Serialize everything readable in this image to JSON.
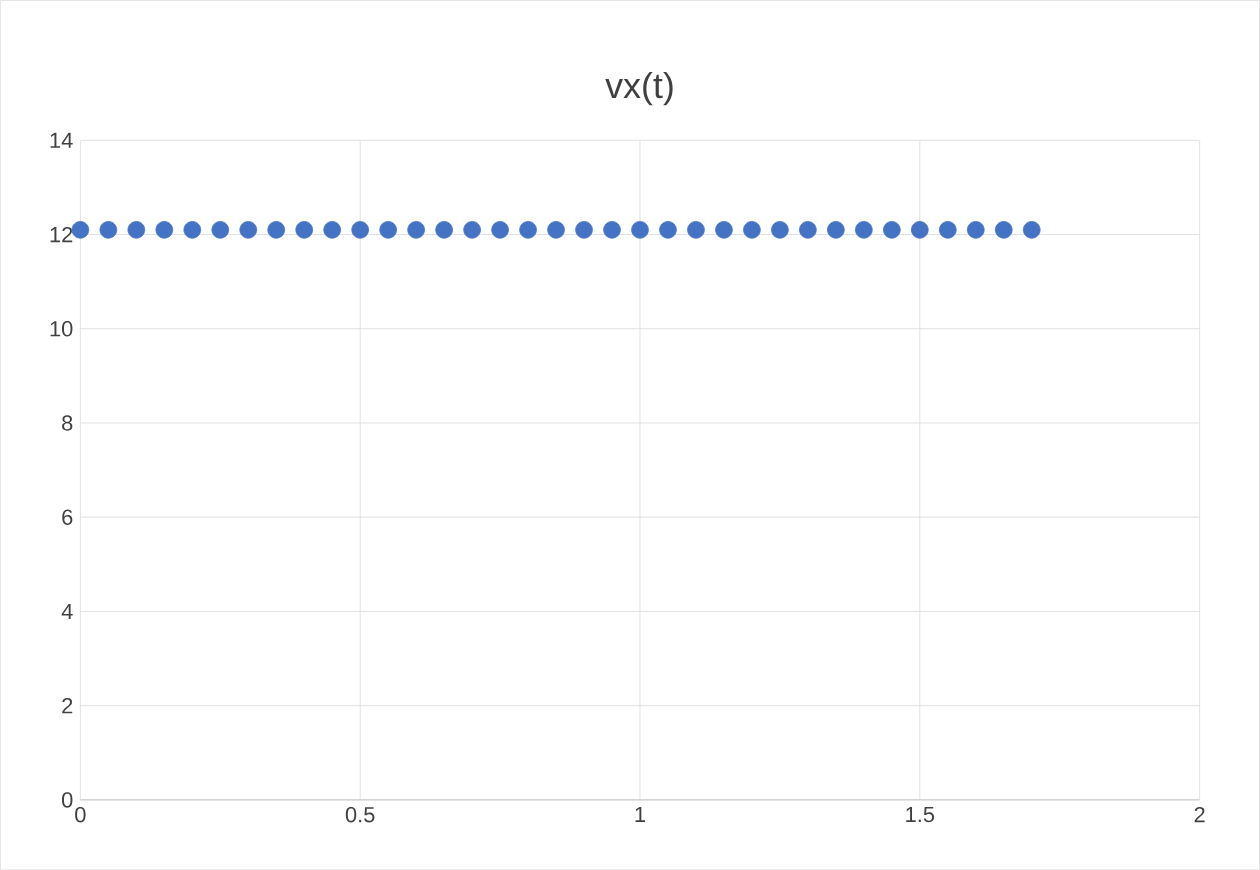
{
  "chart_data": {
    "type": "scatter",
    "title": "vx(t)",
    "x": [
      0,
      0.05,
      0.1,
      0.15,
      0.2,
      0.25,
      0.3,
      0.35,
      0.4,
      0.45,
      0.5,
      0.55,
      0.6,
      0.65,
      0.7,
      0.75,
      0.8,
      0.85,
      0.9,
      0.95,
      1,
      1.05,
      1.1,
      1.15,
      1.2,
      1.25,
      1.3,
      1.35,
      1.4,
      1.45,
      1.5,
      1.55,
      1.6,
      1.65,
      1.7
    ],
    "series": [
      {
        "color": "#4472c4",
        "values": [
          12.1,
          12.1,
          12.1,
          12.1,
          12.1,
          12.1,
          12.1,
          12.1,
          12.1,
          12.1,
          12.1,
          12.1,
          12.1,
          12.1,
          12.1,
          12.1,
          12.1,
          12.1,
          12.1,
          12.1,
          12.1,
          12.1,
          12.1,
          12.1,
          12.1,
          12.1,
          12.1,
          12.1,
          12.1,
          12.1,
          12.1,
          12.1,
          12.1,
          12.1,
          12.1
        ]
      }
    ],
    "xlim": [
      0,
      2
    ],
    "xticks": [
      0,
      0.5,
      1,
      1.5,
      2
    ],
    "ylim": [
      0,
      14
    ],
    "yticks": [
      0,
      2,
      4,
      6,
      8,
      10,
      12,
      14
    ],
    "grid": true,
    "marker": "circle"
  }
}
